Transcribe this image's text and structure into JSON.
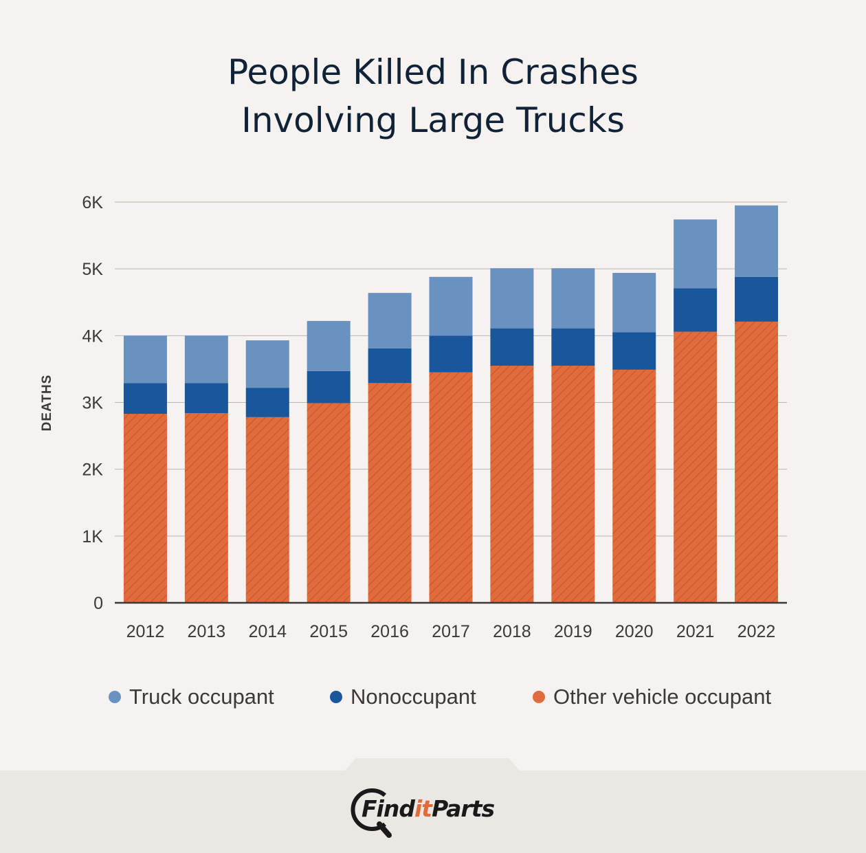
{
  "title": {
    "line1": "People Killed In Crashes",
    "line2": "Involving Large Trucks"
  },
  "chart_data": {
    "type": "bar",
    "stacked": true,
    "categories": [
      "2012",
      "2013",
      "2014",
      "2015",
      "2016",
      "2017",
      "2018",
      "2019",
      "2020",
      "2021",
      "2022"
    ],
    "series": [
      {
        "name": "Other vehicle occupant",
        "color": "#e06b3c",
        "pattern": "diagonal-hatch",
        "values": [
          2830,
          2840,
          2780,
          2990,
          3290,
          3450,
          3550,
          3550,
          3490,
          4060,
          4210
        ]
      },
      {
        "name": "Nonoccupant",
        "color": "#1a569c",
        "values": [
          460,
          450,
          440,
          480,
          520,
          550,
          560,
          560,
          560,
          650,
          670
        ]
      },
      {
        "name": "Truck occupant",
        "color": "#6a92c0",
        "values": [
          710,
          710,
          710,
          750,
          830,
          880,
          900,
          900,
          890,
          1030,
          1070
        ]
      }
    ],
    "ylabel": "DEATHS",
    "yticks": [
      "0",
      "1K",
      "2K",
      "3K",
      "4K",
      "5K",
      "6K"
    ],
    "ylim": [
      0,
      6000
    ],
    "grid": true,
    "legend_position": "bottom"
  },
  "legend_order": [
    "Truck occupant",
    "Nonoccupant",
    "Other vehicle occupant"
  ],
  "brand": {
    "text_main": "Find",
    "text_accent": "it",
    "text_end": "Parts",
    "accent_color": "#e06b3c"
  }
}
